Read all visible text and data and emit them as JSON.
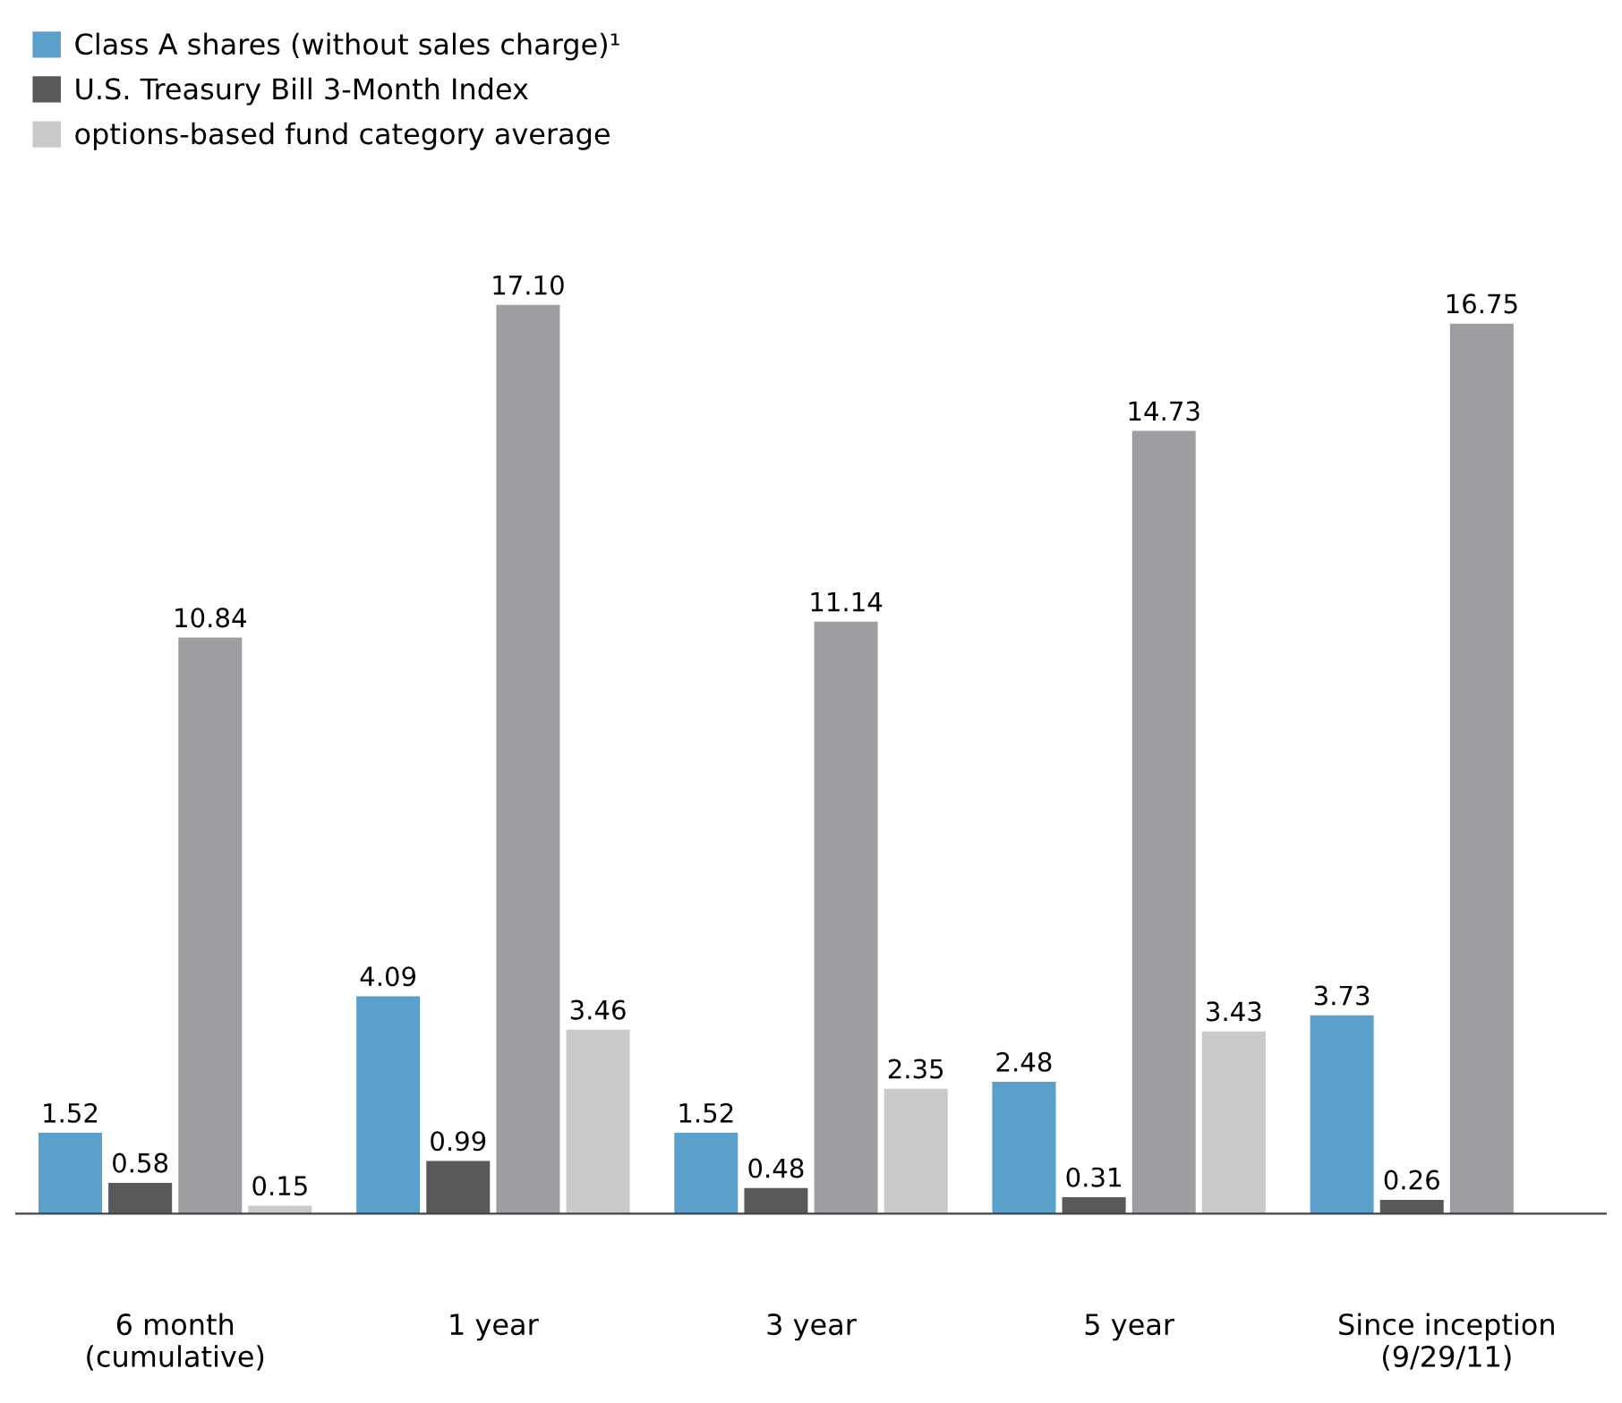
{
  "chart_data": {
    "type": "bar",
    "categories": [
      "6 month\n(cumulative)",
      "1 year",
      "3 year",
      "5 year",
      "Since inception\n(9/29/11)"
    ],
    "series": [
      {
        "name": "Class A shares (without sales charge)¹",
        "color": "#5b9fcb",
        "values": [
          1.52,
          4.09,
          1.52,
          2.48,
          3.73
        ],
        "value_labels": [
          "1.52",
          "4.09",
          "1.52",
          "2.48",
          "3.73"
        ]
      },
      {
        "name": "U.S. Treasury Bill 3-Month Index",
        "color": "#58595b",
        "values": [
          0.58,
          0.99,
          0.48,
          0.31,
          0.26
        ],
        "value_labels": [
          "0.58",
          "0.99",
          "0.48",
          "0.31",
          "0.26"
        ]
      },
      {
        "color": "#9d9ea1",
        "values": [
          10.84,
          17.1,
          11.14,
          14.73,
          16.75
        ],
        "value_labels": [
          "10.84",
          "17.10",
          "11.14",
          "14.73",
          "16.75"
        ]
      },
      {
        "name": "options-based fund category average",
        "color": "#c9cacc",
        "values": [
          0.15,
          3.46,
          2.35,
          3.43,
          null
        ],
        "value_labels": [
          "0.15",
          "3.46",
          "2.35",
          "3.43",
          null
        ]
      }
    ],
    "legend": "top left",
    "tick_labels": "x"
  }
}
